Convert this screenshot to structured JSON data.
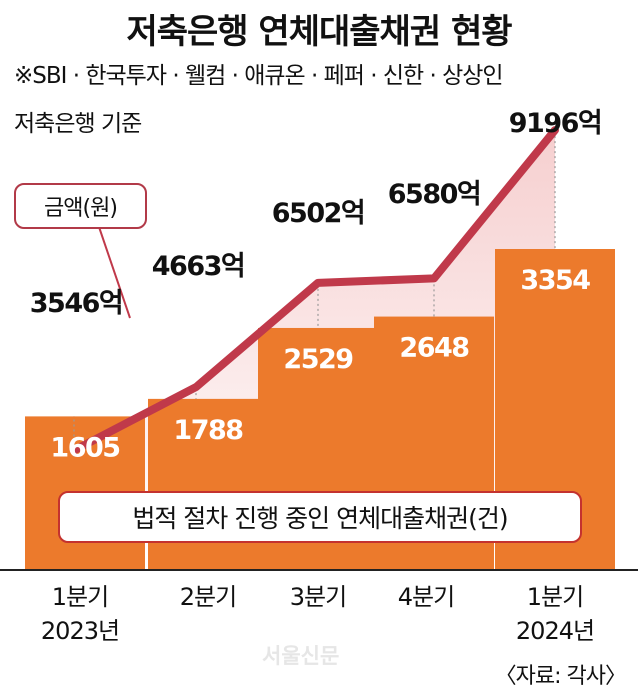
{
  "header": {
    "title": "저축은행 연체대출채권 현황",
    "subtitle": "※SBI · 한국투자 · 웰컴 · 애큐온 · 페퍼 · 신한 · 상상인",
    "basis": "저축은행 기준"
  },
  "legend": {
    "amount_label": "금액(원)",
    "count_label": "법적 절차 진행 중인 연체대출채권(건)"
  },
  "source": "〈자료: 각사〉",
  "watermark": "서울신문",
  "colors": {
    "bar": "#ec7a2c",
    "line": "#c0394a",
    "area_top": "#f6cfcf",
    "area_bottom": "#ffffff",
    "baseline": "#222222"
  },
  "chart_data": {
    "type": "bar",
    "categories": [
      "1분기 2023년",
      "2분기",
      "3분기",
      "4분기",
      "1분기 2024년"
    ],
    "category_lines": [
      [
        "1분기",
        "2023년"
      ],
      [
        "2분기"
      ],
      [
        "3분기"
      ],
      [
        "4분기"
      ],
      [
        "1분기",
        "2024년"
      ]
    ],
    "series": [
      {
        "name": "법적 절차 진행 중인 연체대출채권(건)",
        "type": "bar",
        "values": [
          1605,
          1788,
          2529,
          2648,
          3354
        ],
        "labels": [
          "1605",
          "1788",
          "2529",
          "2648",
          "3354"
        ]
      },
      {
        "name": "금액(원)",
        "type": "line",
        "values": [
          3546,
          4663,
          6502,
          6580,
          9196
        ],
        "labels": [
          "3546억",
          "4663억",
          "6502억",
          "6580억",
          "9196억"
        ]
      }
    ]
  }
}
